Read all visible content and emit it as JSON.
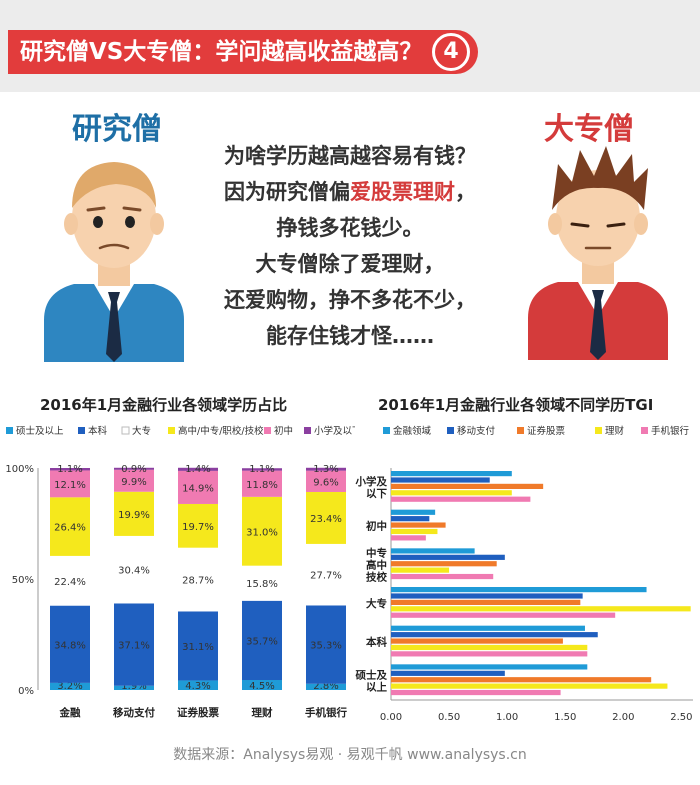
{
  "header": {
    "title": "研究僧VS大专僧：学问越高收益越高？",
    "number": "4"
  },
  "characters": {
    "left_label": "研究僧",
    "right_label": "大专僧"
  },
  "story": {
    "line1": "为啥学历越高越容易有钱？",
    "line2_pre": "因为研究僧偏",
    "line2_hl": "爱股票理财",
    "line2_post": "，",
    "line3": "挣钱多花钱少。",
    "line4": "大专僧除了爱理财，",
    "line5": "还爱购物，挣不多花不少，",
    "line6": "能存住钱才怪……"
  },
  "colors": {
    "red": "#e23c3c",
    "blue_person": "#1e6fa6",
    "s_master": "#1f9bd7",
    "s_bachelor": "#1f5fbf",
    "s_college": "#ffffff",
    "s_highschool": "#f5e81c",
    "s_middle": "#f07ab2",
    "s_primary": "#8b3fa0",
    "t_finance": "#1f9bd7",
    "t_mobile": "#1f5fbf",
    "t_stock": "#f07a2a",
    "t_wealth": "#f5e81c",
    "t_bank": "#f07ab2"
  },
  "chart_data": [
    {
      "type": "bar",
      "stacked": true,
      "title": "2016年1月金融行业各领域学历占比",
      "categories": [
        "金融",
        "移动支付",
        "证券股票",
        "理财",
        "手机银行"
      ],
      "series": [
        {
          "name": "硕士及以上",
          "values": [
            3.2,
            1.9,
            4.3,
            4.5,
            2.8
          ],
          "labels": [
            "3.2%",
            "1.9%",
            "4.3%",
            "4.5%",
            "2.8%"
          ]
        },
        {
          "name": "本科",
          "values": [
            34.8,
            37.1,
            31.1,
            35.7,
            35.3
          ],
          "labels": [
            "34.8%",
            "37.1%",
            "31.1%",
            "35.7%",
            "35.3%"
          ]
        },
        {
          "name": "大专",
          "values": [
            22.4,
            30.4,
            28.7,
            15.8,
            27.7
          ],
          "labels": [
            "22.4%",
            "30.4%",
            "28.7%",
            "15.8%",
            "27.7%"
          ]
        },
        {
          "name": "高中/中专/职校/技校",
          "values": [
            26.4,
            19.9,
            19.7,
            31.0,
            23.4
          ],
          "labels": [
            "26.4%",
            "19.9%",
            "19.7%",
            "31.0%",
            "23.4%"
          ]
        },
        {
          "name": "初中",
          "values": [
            12.1,
            9.9,
            14.9,
            11.8,
            9.6
          ],
          "labels": [
            "12.1%",
            "9.9%",
            "14.9%",
            "11.8%",
            "9.6%"
          ]
        },
        {
          "name": "小学及以下",
          "values": [
            1.1,
            0.9,
            1.4,
            1.1,
            1.3
          ],
          "labels": [
            "1.1%",
            "0.9%",
            "1.4%",
            "1.1%",
            "1.3%"
          ]
        }
      ],
      "yticks": [
        "0%",
        "50%",
        "100%"
      ],
      "ylim": [
        0,
        100
      ],
      "legend": "top"
    },
    {
      "type": "bar",
      "orientation": "horizontal",
      "title": "2016年1月金融行业各领域不同学历TGI",
      "categories": [
        "小学及以下",
        "初中",
        "中专高中技校",
        "大专",
        "本科",
        "硕士及以上"
      ],
      "category_labels": [
        [
          "小学及",
          "以下"
        ],
        [
          "初中"
        ],
        [
          "中专",
          "高中",
          "技校"
        ],
        [
          "大专"
        ],
        [
          "本科"
        ],
        [
          "硕士及",
          "以上"
        ]
      ],
      "series": [
        {
          "name": "金融领域",
          "values": [
            1.04,
            0.38,
            0.72,
            2.2,
            1.67,
            1.69
          ]
        },
        {
          "name": "移动支付",
          "values": [
            0.85,
            0.33,
            0.98,
            1.65,
            1.78,
            0.98
          ]
        },
        {
          "name": "证券股票",
          "values": [
            1.31,
            0.47,
            0.91,
            1.63,
            1.48,
            2.24
          ]
        },
        {
          "name": "理财",
          "values": [
            1.04,
            0.4,
            0.5,
            2.58,
            1.69,
            2.38
          ]
        },
        {
          "name": "手机银行",
          "values": [
            1.2,
            0.3,
            0.88,
            1.93,
            1.69,
            1.46
          ]
        }
      ],
      "xticks": [
        "0.00",
        "0.50",
        "1.00",
        "1.50",
        "2.00",
        "2.50"
      ],
      "xlim": [
        0,
        2.6
      ],
      "legend": "top"
    }
  ],
  "footer": "数据来源：Analysys易观 · 易观千帆   www.analysys.cn"
}
